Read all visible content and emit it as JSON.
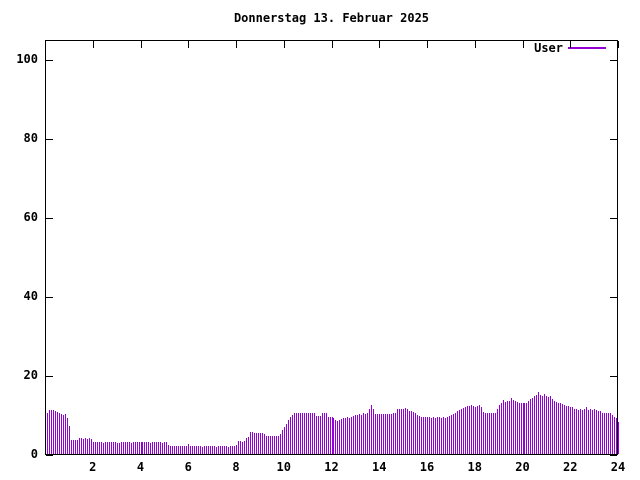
{
  "title": "Donnerstag 13. Februar 2025",
  "legend": {
    "label": "User"
  },
  "colors": {
    "series": "#9400d3",
    "axis": "#000000",
    "text": "#000000",
    "background": "#ffffff"
  },
  "chart_data": {
    "type": "bar",
    "style": "impulses",
    "title": "Donnerstag 13. Februar 2025",
    "xlabel": "",
    "ylabel": "",
    "xlim": [
      0,
      24
    ],
    "ylim": [
      0,
      105
    ],
    "xticks": [
      2,
      4,
      6,
      8,
      10,
      12,
      14,
      16,
      18,
      20,
      22,
      24
    ],
    "yticks": [
      0,
      20,
      40,
      60,
      80,
      100
    ],
    "grid": false,
    "legend_position": "top-right",
    "series": [
      {
        "name": "User",
        "color": "#9400d3",
        "interval_minutes": 5,
        "start_hour": 0,
        "values": [
          10.4,
          11.1,
          11.1,
          11.1,
          10.9,
          10.6,
          10.4,
          10.1,
          9.9,
          10.1,
          9.1,
          7.1,
          3.5,
          3.5,
          3.5,
          3.6,
          4,
          4,
          3.8,
          4,
          3.8,
          4,
          3.8,
          3,
          3,
          3,
          3.1,
          3,
          2.9,
          3,
          3,
          3,
          3.1,
          3,
          3,
          2.9,
          2.9,
          3,
          3,
          3.1,
          3,
          3,
          2.9,
          3,
          3,
          3,
          3.1,
          3,
          3,
          3.1,
          3,
          3,
          2.9,
          3,
          3,
          3.1,
          3,
          3,
          2.9,
          3,
          3,
          2.2,
          2,
          2,
          2,
          2,
          2,
          2,
          2,
          2,
          2,
          2.6,
          2,
          2,
          2,
          2,
          2.1,
          2,
          1.9,
          2,
          2,
          2.1,
          2,
          2,
          2,
          1.9,
          2,
          2,
          2.1,
          2,
          2,
          1.9,
          2,
          2,
          2.1,
          2.2,
          3.2,
          3.2,
          3.1,
          3.2,
          4,
          4.2,
          5.5,
          5.5,
          5.4,
          5.3,
          5.2,
          5.2,
          5.2,
          5.1,
          4.6,
          4.5,
          4.5,
          4.6,
          4.5,
          4.5,
          4.6,
          5,
          6,
          6.8,
          7.5,
          8.5,
          9.5,
          10,
          10.3,
          10.5,
          10.4,
          10.5,
          10.3,
          10.5,
          10.4,
          10.5,
          10.4,
          10.5,
          10.4,
          9.7,
          9.6,
          9.7,
          10.4,
          10.5,
          10.3,
          9.5,
          9.3,
          9.4,
          9.2,
          8.6,
          8.4,
          8.6,
          8.8,
          9,
          9.2,
          9.3,
          9.2,
          9.4,
          9.6,
          9.8,
          10,
          10.2,
          10,
          10.3,
          10.2,
          10.4,
          11.3,
          12.5,
          11.4,
          10.2,
          10.1,
          10.2,
          10.1,
          10.2,
          10.1,
          10.2,
          10.1,
          10.2,
          10.3,
          10.5,
          11.3,
          11.5,
          11.4,
          11.5,
          11.6,
          11.3,
          11,
          10.8,
          10.7,
          10.5,
          10,
          9.6,
          9.4,
          9.3,
          9.3,
          9.3,
          9.3,
          9.2,
          9.3,
          9.2,
          9.3,
          9.3,
          9.2,
          9.3,
          9.2,
          9.3,
          9.6,
          10,
          10.2,
          10.5,
          11,
          11.2,
          11.4,
          11.6,
          12,
          12.2,
          12.1,
          12.3,
          12.2,
          12,
          12.2,
          12.5,
          11.8,
          10.6,
          10.4,
          10.5,
          10.4,
          10.3,
          10.4,
          10.5,
          11.5,
          12.5,
          13,
          13.8,
          13.2,
          13.4,
          13.3,
          14.3,
          13.6,
          13.4,
          13.2,
          13,
          12.9,
          12.8,
          12.8,
          13,
          13.5,
          14,
          14.3,
          14.8,
          15,
          15.6,
          15,
          14.8,
          15.2,
          14.6,
          14.4,
          14.8,
          14,
          13.5,
          13.2,
          13,
          12.8,
          12.6,
          12.4,
          12.2,
          12.1,
          12,
          11.8,
          11.5,
          11.3,
          11.2,
          11.3,
          11.2,
          11.4,
          11.8,
          11.2,
          11.3,
          11.2,
          11.4,
          11.2,
          11,
          10.8,
          10.5,
          10.4,
          10.5,
          10.3,
          10.4,
          9.8,
          9.4,
          9,
          8
        ]
      }
    ]
  }
}
